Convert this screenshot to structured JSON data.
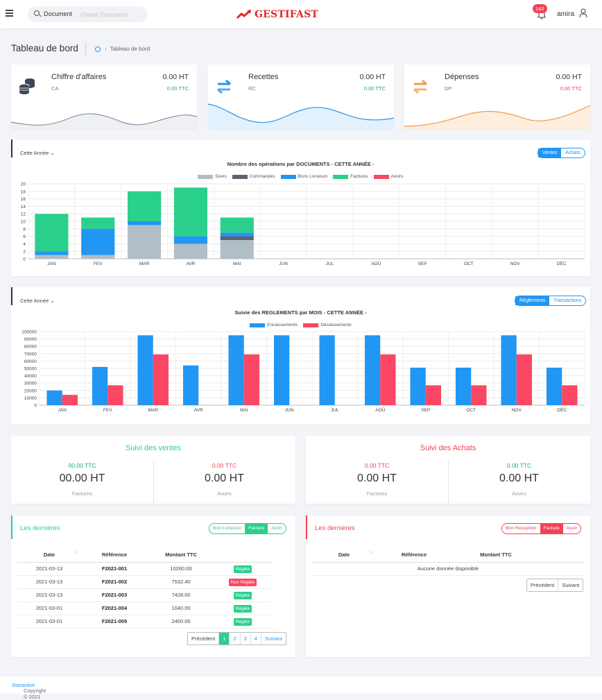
{
  "header": {
    "search_category": "Document",
    "search_placeholder": "Choisir Document",
    "brand": "GESTIFAST",
    "notif_count": "142",
    "username": "amira"
  },
  "breadcrumb": {
    "title": "Tableau de bord",
    "crumb": "Tableau de bord"
  },
  "stats": [
    {
      "title": "Chiffre d'affaires",
      "code": "CA",
      "ht": "0.00 HT",
      "ttc": "0.00 TTC",
      "color": "#1fa37a",
      "icon": "coins-icon"
    },
    {
      "title": "Recettes",
      "code": "RC",
      "ht": "0.00 HT",
      "ttc": "0.00 TTC",
      "color": "#1fa37a",
      "icon": "transfer-arrows-icon"
    },
    {
      "title": "Dépenses",
      "code": "DP",
      "ht": "0.00 HT",
      "ttc": "0.00 TTC",
      "color": "#f04355",
      "icon": "transfer-arrows-icon"
    }
  ],
  "chart1": {
    "period": "Cette Année",
    "toggle": [
      "Ventes",
      "Achats"
    ],
    "title": "Nombre des opérations par DOCUMENTS - CETTE ANNÉE -"
  },
  "chart2": {
    "period": "Cette Année",
    "toggle": [
      "Réglements",
      "Transactions"
    ],
    "title": "Suivie des REGLEMENTS par MOIS - CETTE ANNÉE -"
  },
  "chart_data": [
    {
      "type": "bar",
      "stacked": true,
      "title": "Nombre des opérations par DOCUMENTS - CETTE ANNÉE -",
      "categories": [
        "JAN",
        "FEV",
        "MAR",
        "AVR",
        "MAI",
        "JUN",
        "JUL",
        "AOÛ",
        "SEP",
        "OCT",
        "NOV",
        "DÉC"
      ],
      "ylim": [
        0,
        20
      ],
      "yticks": [
        0,
        2,
        4,
        6,
        8,
        10,
        12,
        14,
        16,
        18,
        20
      ],
      "grid": true,
      "legend": "top",
      "series": [
        {
          "name": "Devis",
          "color": "#b2bec6",
          "values": [
            1,
            1,
            9,
            4,
            5,
            0,
            0,
            0,
            0,
            0,
            0,
            0
          ]
        },
        {
          "name": "Commandes",
          "color": "#5d6271",
          "values": [
            0,
            0,
            0,
            0,
            1,
            0,
            0,
            0,
            0,
            0,
            0,
            0
          ]
        },
        {
          "name": "Bons Livraison",
          "color": "#2196f3",
          "values": [
            1,
            7,
            1,
            2,
            1,
            0,
            0,
            0,
            0,
            0,
            0,
            0
          ]
        },
        {
          "name": "Factures",
          "color": "#2ad08b",
          "values": [
            10,
            3,
            8,
            13,
            4,
            0,
            0,
            0,
            0,
            0,
            0,
            0
          ]
        },
        {
          "name": "Avoirs",
          "color": "#fb4763",
          "values": [
            0,
            0,
            0,
            0,
            0,
            0,
            0,
            0,
            0,
            0,
            0,
            0
          ]
        }
      ]
    },
    {
      "type": "bar",
      "title": "Suivie des REGLEMENTS par MOIS - CETTE ANNÉE -",
      "categories": [
        "JAN",
        "FEV",
        "MAR",
        "AVR",
        "MAI",
        "JUN",
        "JUL",
        "AOÛ",
        "SEP",
        "OCT",
        "NOV",
        "DÉC"
      ],
      "ylim": [
        0,
        100000
      ],
      "yticks": [
        0,
        10000,
        20000,
        30000,
        40000,
        50000,
        60000,
        70000,
        80000,
        90000,
        100000
      ],
      "grid": true,
      "legend": "top",
      "series": [
        {
          "name": "Encaissements",
          "color": "#2196f3",
          "values": [
            20000,
            52000,
            95000,
            54000,
            95000,
            95000,
            95000,
            95000,
            51000,
            51000,
            95000,
            51000
          ]
        },
        {
          "name": "Décaissements",
          "color": "#fb4763",
          "values": [
            14000,
            27000,
            69000,
            0,
            69000,
            0,
            0,
            69000,
            27000,
            27000,
            69000,
            27000
          ]
        }
      ]
    }
  ],
  "suivi_ventes": {
    "title": "Suivi des ventes",
    "left": {
      "ttc": "00.00 TTC",
      "ht": "00.00 HT",
      "label": "Factures"
    },
    "right": {
      "ttc": "0.00 TTC",
      "ht": "0.00 HT",
      "label": "Avoirs"
    }
  },
  "suivi_achats": {
    "title": "Suivi des Achats",
    "left": {
      "ttc": "0.00 TTC",
      "ht": "0.00 HT",
      "label": "Factures"
    },
    "right": {
      "ttc": "0.00 TTC",
      "ht": "0.00 HT",
      "label": "Avoirs"
    }
  },
  "ventes_table": {
    "title": "Les dernières",
    "tabs": [
      "Bon Livraison",
      "Facture",
      "Avoir"
    ],
    "columns": [
      "Date",
      "Référence",
      "Montant TTC",
      ""
    ],
    "rows": [
      {
        "date": "2021-03-13",
        "ref": "F2021-001",
        "amount": "10260.00",
        "status": "Réglée",
        "status_color": "#2ad08b"
      },
      {
        "date": "2021-03-13",
        "ref": "F2021-002",
        "amount": "7532.40",
        "status": "Non Réglée",
        "status_color": "#fb4763"
      },
      {
        "date": "2021-03-13",
        "ref": "F2021-003",
        "amount": "7428.00",
        "status": "Réglée",
        "status_color": "#2ad08b"
      },
      {
        "date": "2021-03-01",
        "ref": "F2021-004",
        "amount": "1040.00",
        "status": "Réglée",
        "status_color": "#2ad08b"
      },
      {
        "date": "2021-03-01",
        "ref": "F2021-005",
        "amount": "2400.00",
        "status": "Réglée",
        "status_color": "#2ad08b"
      }
    ],
    "pager": [
      "Précédent",
      "1",
      "2",
      "3",
      "4",
      "Suivant"
    ]
  },
  "achats_table": {
    "title": "Les dernières",
    "tabs": [
      "Bon Réception",
      "Facture",
      "Avoir"
    ],
    "columns": [
      "Date",
      "Référence",
      "Montant TTC"
    ],
    "empty": "Aucune donnée disponible",
    "pager": [
      "Précédent",
      "Suivant"
    ]
  },
  "footer": {
    "copyright": "Copyright © 2021",
    "link": "Storactive"
  },
  "colors": {
    "primary": "#2196f3",
    "green": "#2ad08b",
    "red": "#fb4763"
  }
}
